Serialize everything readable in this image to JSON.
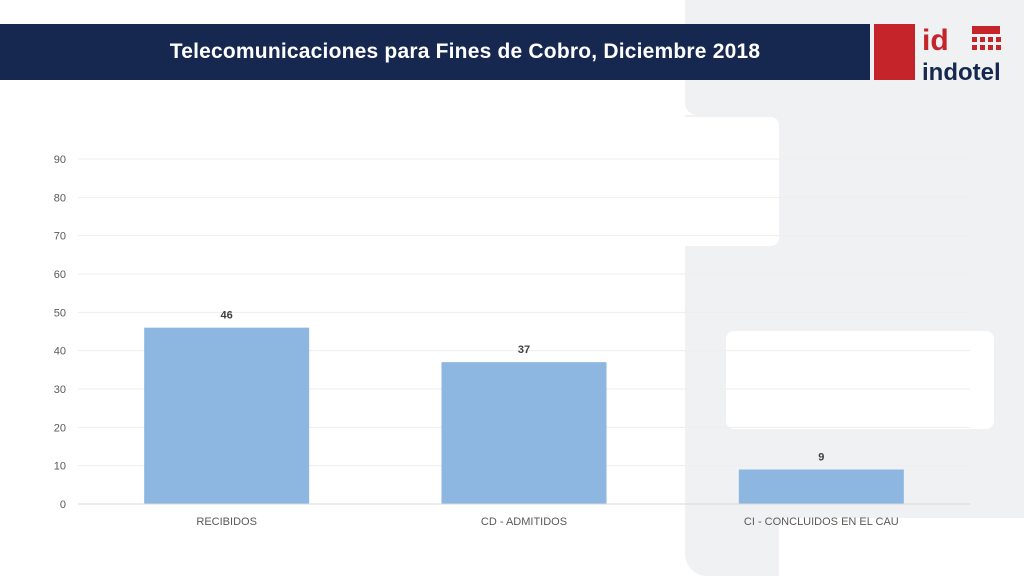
{
  "header": {
    "title": "Telecomunicaciones para Fines de Cobro, Diciembre 2018"
  },
  "logo": {
    "mark": "id",
    "wordmark": "indotel",
    "colors": {
      "red": "#c5242b",
      "navy": "#16284f"
    }
  },
  "colors": {
    "title_bar": "#16284f",
    "bar": "#8db7e1",
    "grid": "#eeeeee",
    "axis": "#d9d9d9",
    "tick_text": "#595959",
    "label_text": "#404040"
  },
  "chart_data": {
    "type": "bar",
    "title": "",
    "xlabel": "",
    "ylabel": "",
    "categories": [
      "RECIBIDOS",
      "CD - ADMITIDOS",
      "CI - CONCLUIDOS EN EL CAU"
    ],
    "values": [
      46,
      37,
      9
    ],
    "data_labels": [
      "46",
      "37",
      "9"
    ],
    "ylim": [
      0,
      90
    ],
    "yticks": [
      "0",
      "10",
      "20",
      "30",
      "40",
      "50",
      "60",
      "70",
      "80",
      "90"
    ],
    "grid": true,
    "legend": "none"
  }
}
